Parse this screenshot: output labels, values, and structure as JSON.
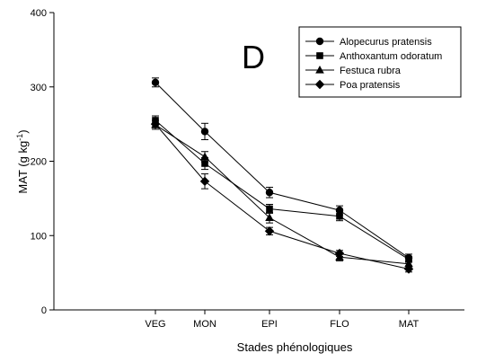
{
  "chart_data": {
    "type": "line",
    "panel_label": "D",
    "xlabel": "Stades phénologiques",
    "ylabel": "MAT (g kg",
    "ylabel_sup": "-1",
    "ylabel_end": ")",
    "categories": [
      "VEG",
      "MON",
      "EPI",
      "FLO",
      "MAT"
    ],
    "ylim": [
      0,
      400
    ],
    "yticks": [
      0,
      100,
      200,
      300,
      400
    ],
    "grid": false,
    "legend_position": "top-right",
    "series": [
      {
        "name": "Alopecurus pratensis",
        "marker": "circle",
        "values": [
          306,
          240,
          158,
          134,
          70
        ],
        "errors": [
          6,
          11,
          7,
          6,
          5
        ]
      },
      {
        "name": "Anthoxantum odoratum",
        "marker": "square",
        "values": [
          255,
          197,
          136,
          126,
          68
        ],
        "errors": [
          6,
          8,
          6,
          6,
          4
        ]
      },
      {
        "name": "Festuca rubra",
        "marker": "triangle",
        "values": [
          249,
          206,
          124,
          71,
          62
        ],
        "errors": [
          6,
          7,
          7,
          5,
          4
        ]
      },
      {
        "name": "Poa pratensis",
        "marker": "diamond",
        "values": [
          250,
          173,
          106,
          76,
          55
        ],
        "errors": [
          5,
          10,
          5,
          4,
          4
        ]
      }
    ]
  }
}
